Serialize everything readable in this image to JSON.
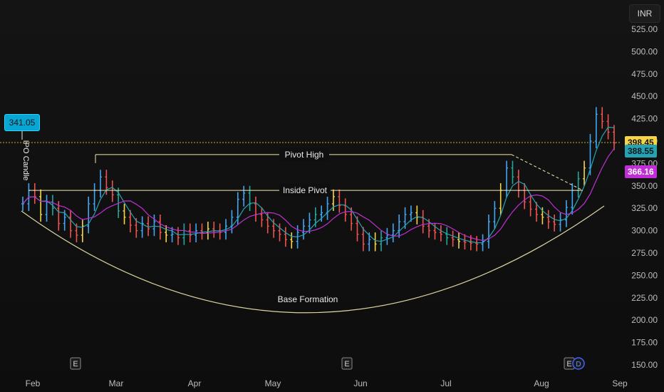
{
  "header": {
    "currency": "INR"
  },
  "chart_data": {
    "type": "candlestick",
    "title": "",
    "xlabel": "",
    "ylabel": "",
    "ylim": [
      150,
      540
    ],
    "y_ticks": [
      "525.00",
      "500.00",
      "475.00",
      "450.00",
      "425.00",
      "400.00",
      "375.00",
      "350.00",
      "325.00",
      "300.00",
      "275.00",
      "250.00",
      "225.00",
      "200.00",
      "175.00",
      "150.00"
    ],
    "x_ticks": [
      "Feb",
      "Mar",
      "Apr",
      "May",
      "Jun",
      "Jul",
      "Aug",
      "Sep"
    ],
    "price_tags": [
      {
        "label": "398.45",
        "value": 398.45,
        "color": "#f5d547",
        "text_color": "#111111"
      },
      {
        "label": "388.55",
        "value": 388.55,
        "color": "#26a3b3",
        "text_color": "#0b1620"
      },
      {
        "label": "366.16",
        "value": 366.16,
        "color": "#c02fd6",
        "text_color": "#ffffff"
      }
    ],
    "ipo_price": {
      "label": "341.05",
      "value": 341.05
    },
    "current_price_line": 398.45,
    "annotations": {
      "ipo_candle": "IPO Candle",
      "pivot_high": {
        "label": "Pivot High",
        "value": 385
      },
      "inside_pivot": {
        "label": "Inside Pivot",
        "value": 345
      },
      "base_formation": "Base Formation"
    },
    "earnings_markers": [
      "E",
      "E",
      "E"
    ],
    "dividend_marker": "D",
    "colors": {
      "up": "#42a5f5",
      "down": "#ef5350",
      "neutral_up": "#26a69a",
      "highlight": "#f5d547",
      "ma_fast": "#26a3b3",
      "ma_slow": "#c02fd6"
    },
    "series": [
      {
        "name": "",
        "type": "ohlc_approx",
        "values": [
          330,
          345,
          338,
          318,
          332,
          325,
          308,
          315,
          300,
          295,
          305,
          330,
          345,
          360,
          348,
          340,
          322,
          315,
          306,
          300,
          308,
          302,
          310,
          298,
          295,
          296,
          292,
          300,
          295,
          300,
          298,
          302,
          300,
          298,
          305,
          315,
          335,
          342,
          330,
          318,
          312,
          305,
          300,
          296,
          290,
          288,
          298,
          305,
          312,
          318,
          320,
          330,
          338,
          328,
          318,
          308,
          296,
          285,
          290,
          285,
          292,
          295,
          300,
          310,
          318,
          320,
          315,
          305,
          300,
          298,
          296,
          292,
          290,
          288,
          287,
          286,
          285,
          288,
          310,
          325,
          345,
          370,
          360,
          345,
          332,
          324,
          318,
          315,
          310,
          307,
          312,
          326,
          345,
          358,
          370,
          400,
          430,
          422,
          410,
          398
        ]
      }
    ]
  }
}
